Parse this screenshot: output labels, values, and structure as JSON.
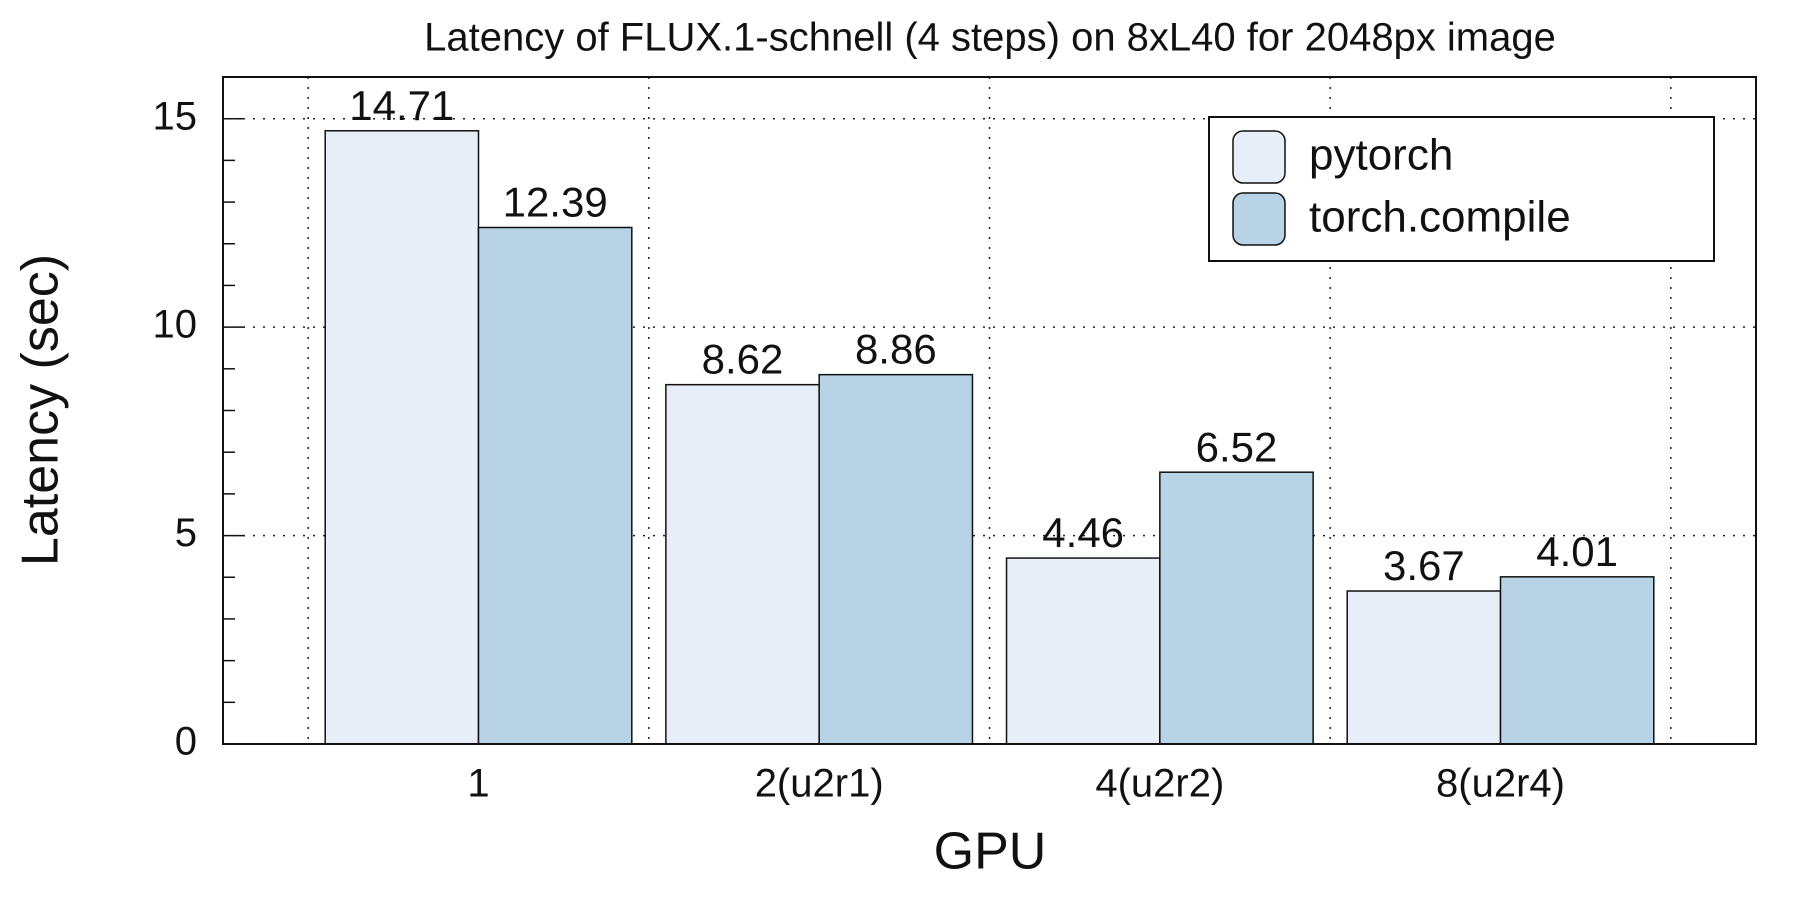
{
  "chart_data": {
    "type": "bar",
    "title": "Latency of FLUX.1-schnell (4 steps) on 8xL40 for 2048px image",
    "x_label": "GPU",
    "y_label": "Latency (sec)",
    "categories": [
      "1",
      "2(u2r1)",
      "4(u2r2)",
      "8(u2r4)"
    ],
    "series": [
      {
        "name": "pytorch",
        "color": "#e7eef8",
        "values": [
          14.71,
          8.62,
          4.46,
          3.67
        ]
      },
      {
        "name": "torch.compile",
        "color": "#b8d3e6",
        "values": [
          12.39,
          8.86,
          6.52,
          4.01
        ]
      }
    ],
    "ylim": [
      0,
      16
    ],
    "yticks": [
      0,
      5,
      10,
      15
    ],
    "yminorticks": [
      1,
      2,
      3,
      4,
      6,
      7,
      8,
      9,
      11,
      12,
      13,
      14,
      16
    ],
    "grid": true,
    "legend": "upper right"
  }
}
